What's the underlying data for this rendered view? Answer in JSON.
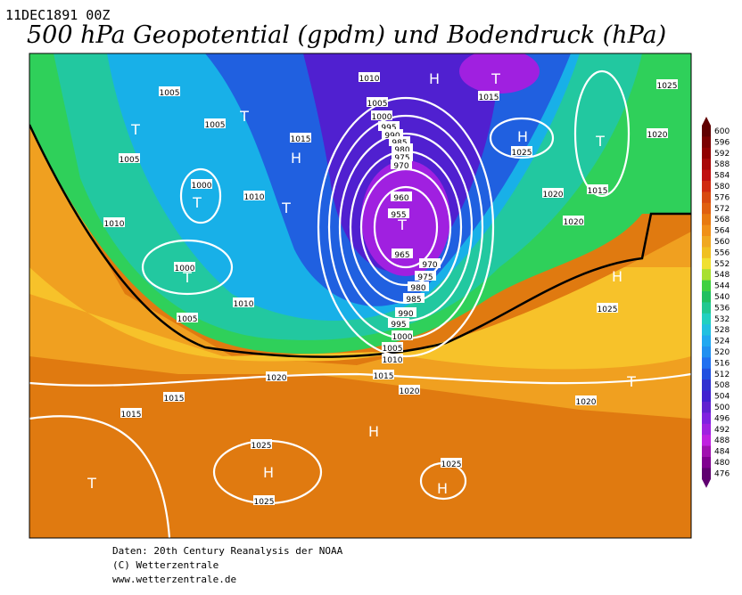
{
  "header": {
    "date": "11DEC1891 00Z",
    "title": "500 hPa Geopotential (gpdm) und Bodendruck (hPa)"
  },
  "legend": {
    "labels": [
      "600",
      "596",
      "592",
      "588",
      "584",
      "580",
      "576",
      "572",
      "568",
      "564",
      "560",
      "556",
      "552",
      "548",
      "544",
      "540",
      "536",
      "532",
      "528",
      "524",
      "520",
      "516",
      "512",
      "508",
      "504",
      "500",
      "496",
      "492",
      "488",
      "484",
      "480",
      "476"
    ]
  },
  "map": {
    "labels": [
      "1005",
      "1005",
      "1005",
      "1000",
      "1010",
      "1010",
      "1000",
      "1005",
      "1010",
      "1015",
      "1010",
      "1005",
      "1000",
      "995",
      "990",
      "985",
      "980",
      "975",
      "970",
      "960",
      "955",
      "965",
      "970",
      "975",
      "980",
      "985",
      "990",
      "995",
      "1000",
      "1005",
      "1010",
      "1015",
      "1020",
      "1020",
      "1015",
      "1015",
      "1025",
      "1025",
      "1025",
      "1020",
      "1020",
      "1015",
      "1025",
      "1015",
      "1025",
      "1020",
      "1025",
      "1020",
      "T",
      "T",
      "H",
      "T",
      "T",
      "T",
      "H",
      "T",
      "H",
      "T",
      "T",
      "H",
      "T",
      "H",
      "H",
      "H",
      "T"
    ]
  },
  "footer": {
    "lines": [
      "Daten: 20th Century Reanalysis der NOAA",
      "(C) Wetterzentrale",
      "www.wetterzentrale.de"
    ]
  }
}
